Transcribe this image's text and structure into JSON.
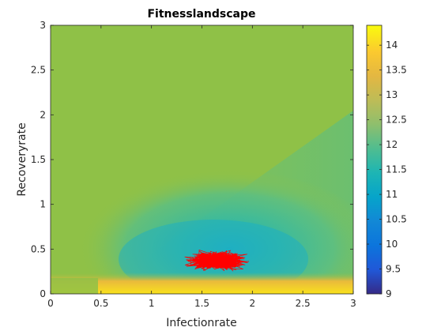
{
  "chart_data": {
    "type": "heatmap",
    "title": "Fitnesslandscape",
    "xlabel": "Infectionrate",
    "ylabel": "Recoveryrate",
    "xlim": [
      0,
      3
    ],
    "ylim": [
      0,
      3
    ],
    "xticks": [
      "0",
      "0.5",
      "1",
      "1.5",
      "2",
      "2.5",
      "3"
    ],
    "yticks": [
      "0",
      "0.5",
      "1",
      "1.5",
      "2",
      "2.5",
      "3"
    ],
    "colorbar": {
      "clim": [
        9,
        14.4
      ],
      "ticks": [
        "9",
        "9.5",
        "10",
        "10.5",
        "11",
        "11.5",
        "12",
        "12.5",
        "13",
        "13.5",
        "14"
      ],
      "colormap": "parula"
    },
    "overlay": {
      "type": "line",
      "color": "#ff0000",
      "description_center": [
        1.65,
        0.37
      ],
      "x_range": [
        1.15,
        2.5
      ],
      "y_range": [
        0.2,
        0.85
      ]
    },
    "colors": {
      "background_field": "#8fc147",
      "trace": "#ff0000"
    }
  }
}
